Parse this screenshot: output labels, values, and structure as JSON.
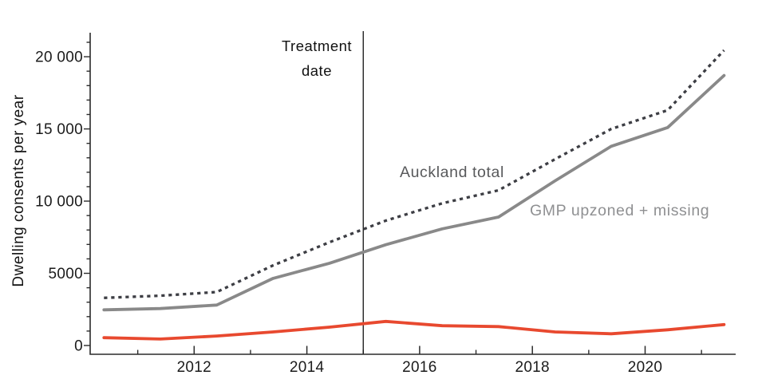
{
  "chart_data": {
    "type": "line",
    "title": "",
    "ylabel": "Dwelling consents per year",
    "xlabel": "",
    "grid": false,
    "legend_position": "inline-labels-on-plot",
    "x": [
      2010.4,
      2011.4,
      2012.4,
      2013.4,
      2014.4,
      2015.4,
      2016.4,
      2017.4,
      2018.4,
      2019.4,
      2020.4,
      2021.4
    ],
    "series": [
      {
        "label": "Auckland total",
        "color": "#3d3e44",
        "label_color": "#58595b",
        "dashed": true,
        "values": [
          3300,
          3450,
          3700,
          5550,
          7150,
          8650,
          9850,
          10750,
          12900,
          15000,
          16300,
          20450
        ]
      },
      {
        "label": "GMP upzoned + missing",
        "color": "#898989",
        "label_color": "#8f9092",
        "dashed": false,
        "values": [
          2470,
          2560,
          2800,
          4650,
          5700,
          6980,
          8080,
          8900,
          11400,
          13800,
          15100,
          18700
        ]
      },
      {
        "label": "",
        "color": "#e8492f",
        "label_color": "",
        "dashed": false,
        "values": [
          540,
          450,
          660,
          940,
          1270,
          1670,
          1370,
          1310,
          940,
          810,
          1090,
          1450
        ]
      }
    ],
    "y_axis": {
      "ticks": [
        0,
        5000,
        10000,
        15000,
        20000
      ],
      "tick_labels": [
        "0",
        "5000",
        "10 000",
        "15 000",
        "20 000"
      ],
      "minor_step": 1000,
      "range": [
        0,
        21000
      ]
    },
    "x_axis": {
      "ticks": [
        2012,
        2014,
        2016,
        2018,
        2020
      ],
      "tick_labels": [
        "2012",
        "2014",
        "2016",
        "2018",
        "2020"
      ],
      "minor_ticks": [
        2011,
        2013,
        2015,
        2017,
        2019,
        2021
      ],
      "range": [
        2010.15,
        2021.6
      ]
    },
    "annotation": {
      "treatment_line_x": 2015,
      "label": [
        "Treatment",
        "date"
      ]
    }
  }
}
